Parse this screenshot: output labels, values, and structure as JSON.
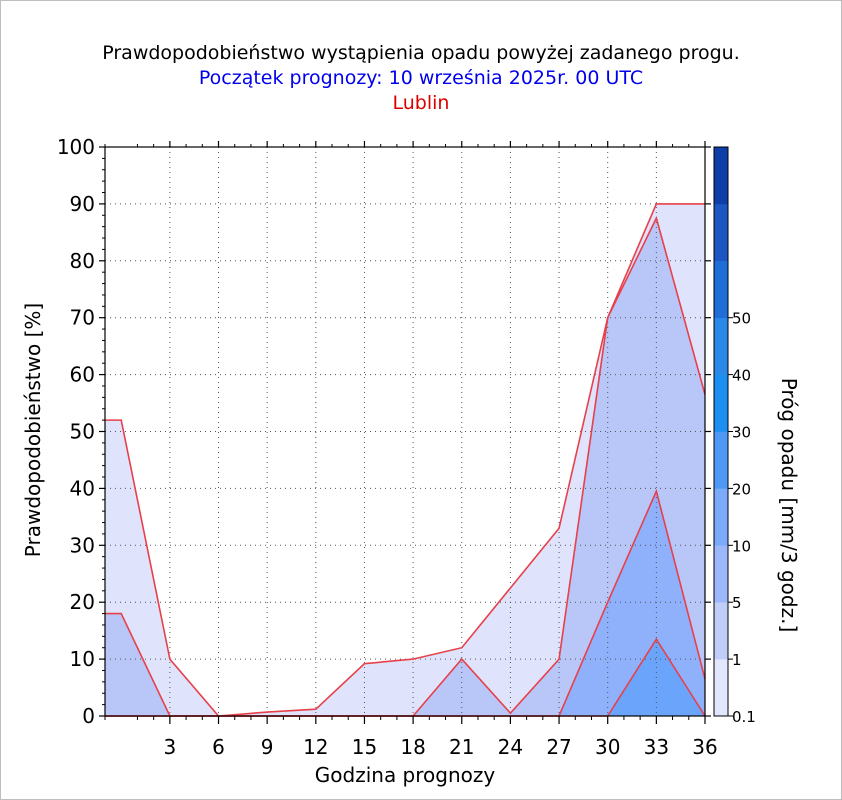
{
  "colors": {
    "title": "#000000",
    "subtitle": "#0000ee",
    "location": "#dd0000",
    "series_line": "#e8404a",
    "plot_border": "#000000"
  },
  "header": {
    "title": "Prawdopodobieństwo wystąpienia opadu powyżej zadanego progu.",
    "subtitle": "Początek prognozy: 10 września 2025r. 00 UTC",
    "location": "Lublin"
  },
  "chart_data": {
    "type": "area",
    "title": "Prawdopodobieństwo wystąpienia opadu powyżej zadanego progu.",
    "xlabel": "Godzina prognozy",
    "ylabel": "Prawdopodobieństwo [%]",
    "xlim": [
      -1,
      36
    ],
    "ylim": [
      0,
      100
    ],
    "x_ticks": [
      3,
      6,
      9,
      12,
      15,
      18,
      21,
      24,
      27,
      30,
      33,
      36
    ],
    "y_ticks": [
      0,
      10,
      20,
      30,
      40,
      50,
      60,
      70,
      80,
      90,
      100
    ],
    "grid": true,
    "x": [
      -1,
      0,
      3,
      6,
      9,
      12,
      15,
      18,
      21,
      24,
      27,
      30,
      33,
      36
    ],
    "series": [
      {
        "threshold": "0.1",
        "color": "#dfe4fc",
        "values": [
          52,
          52,
          10,
          0,
          0.7,
          1.2,
          9.2,
          10,
          12,
          22.5,
          33,
          70,
          90,
          90
        ]
      },
      {
        "threshold": "1",
        "color": "#b8c6f8",
        "values": [
          18,
          18,
          0,
          0,
          0,
          0,
          0,
          0,
          10,
          0.5,
          10,
          70,
          87.5,
          56.5
        ]
      },
      {
        "threshold": "5",
        "color": "#8fb0fa",
        "values": [
          0,
          0,
          0,
          0,
          0,
          0,
          0,
          0,
          0,
          0,
          0,
          20,
          39.5,
          6.5
        ]
      },
      {
        "threshold": "10",
        "color": "#6aa4fb",
        "values": [
          0,
          0,
          0,
          0,
          0,
          0,
          0,
          0,
          0,
          0,
          0,
          0,
          13.5,
          0
        ]
      }
    ],
    "colorbar": {
      "label": "Próg opadu [mm/3 godz.]",
      "tick_labels": [
        "0.1",
        "1",
        "5",
        "10",
        "20",
        "30",
        "40",
        "50"
      ],
      "segments": [
        "#e2e7fd",
        "#c0cdf9",
        "#9cb8fb",
        "#7aaaf9",
        "#4f99f6",
        "#1d8ff2",
        "#2a88e8",
        "#1f6ed8",
        "#1b56c3",
        "#0e3ea8"
      ]
    }
  }
}
